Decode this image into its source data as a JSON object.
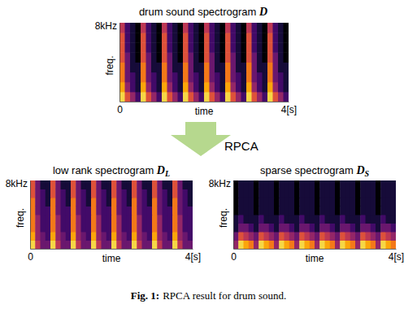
{
  "figure": {
    "arrow_label": "RPCA",
    "caption_label": "Fig. 1:",
    "caption": "RPCA result for drum sound."
  },
  "chart_data": [
    {
      "type": "heatmap",
      "title": "drum sound spectrogram",
      "symbol": "D",
      "xlabel": "time",
      "ylabel": "freq.",
      "xlim": [
        0,
        4
      ],
      "xticks": [
        0,
        {
          "value": 4,
          "label": "4[s]"
        }
      ],
      "ylim": [
        0,
        8
      ],
      "yticks": [
        {
          "value": 8,
          "label": "8kHz"
        }
      ],
      "zlim": [
        0,
        1
      ],
      "cells": [
        [
          0.9,
          0.6,
          0.4,
          0.2,
          0.9,
          0.6,
          0.4,
          0.2,
          0.9,
          0.6,
          0.4,
          0.2,
          0.9,
          0.6,
          0.4,
          0.2,
          0.9,
          0.6,
          0.4,
          0.2,
          0.9,
          0.6,
          0.4,
          0.2,
          0.9,
          0.6,
          0.4,
          0.2,
          0.9,
          0.6,
          0.4,
          0.2
        ],
        [
          0.8,
          0.4,
          0.2,
          0.1,
          0.8,
          0.4,
          0.2,
          0.1,
          0.8,
          0.4,
          0.2,
          0.1,
          0.8,
          0.4,
          0.2,
          0.1,
          0.8,
          0.4,
          0.2,
          0.1,
          0.8,
          0.4,
          0.2,
          0.1,
          0.8,
          0.4,
          0.2,
          0.1,
          0.8,
          0.4,
          0.2,
          0.1
        ],
        [
          0.7,
          0.3,
          0.2,
          0.1,
          0.7,
          0.3,
          0.2,
          0.1,
          0.7,
          0.3,
          0.2,
          0.1,
          0.7,
          0.3,
          0.2,
          0.1,
          0.7,
          0.3,
          0.2,
          0.1,
          0.7,
          0.3,
          0.2,
          0.1,
          0.7,
          0.3,
          0.2,
          0.1,
          0.7,
          0.3,
          0.2,
          0.1
        ],
        [
          0.7,
          0.3,
          0.1,
          0.1,
          0.7,
          0.3,
          0.1,
          0.1,
          0.7,
          0.3,
          0.1,
          0.1,
          0.7,
          0.3,
          0.1,
          0.1,
          0.7,
          0.3,
          0.1,
          0.1,
          0.7,
          0.3,
          0.1,
          0.1,
          0.7,
          0.3,
          0.1,
          0.1,
          0.7,
          0.3,
          0.1,
          0.1
        ],
        [
          0.6,
          0.3,
          0.1,
          0,
          0.6,
          0.3,
          0.1,
          0,
          0.6,
          0.3,
          0.1,
          0,
          0.6,
          0.3,
          0.1,
          0,
          0.6,
          0.3,
          0.1,
          0,
          0.6,
          0.3,
          0.1,
          0,
          0.6,
          0.3,
          0.1,
          0,
          0.6,
          0.3,
          0.1,
          0
        ],
        [
          0.6,
          0.2,
          0.1,
          0,
          0.6,
          0.2,
          0.1,
          0,
          0.6,
          0.2,
          0.1,
          0,
          0.6,
          0.2,
          0.1,
          0,
          0.6,
          0.2,
          0.1,
          0,
          0.6,
          0.2,
          0.1,
          0,
          0.6,
          0.2,
          0.1,
          0,
          0.6,
          0.2,
          0.1,
          0
        ],
        [
          0.6,
          0.2,
          0.1,
          0,
          0.6,
          0.2,
          0.1,
          0,
          0.6,
          0.2,
          0.1,
          0,
          0.6,
          0.2,
          0.1,
          0,
          0.6,
          0.2,
          0.1,
          0,
          0.6,
          0.2,
          0.1,
          0,
          0.6,
          0.2,
          0.1,
          0,
          0.6,
          0.2,
          0.1,
          0
        ],
        [
          0.5,
          0.2,
          0.1,
          0,
          0.5,
          0.2,
          0.1,
          0,
          0.5,
          0.2,
          0.1,
          0,
          0.5,
          0.2,
          0.1,
          0,
          0.5,
          0.2,
          0.1,
          0,
          0.5,
          0.2,
          0.1,
          0,
          0.5,
          0.2,
          0.1,
          0,
          0.5,
          0.2,
          0.1,
          0
        ]
      ]
    },
    {
      "type": "heatmap",
      "title": "low rank spectrogram",
      "symbol": "D",
      "subscript": "L",
      "xlabel": "time",
      "ylabel": "freq.",
      "xlim": [
        0,
        4
      ],
      "xticks": [
        0,
        {
          "value": 4,
          "label": "4[s]"
        }
      ],
      "ylim": [
        0,
        8
      ],
      "yticks": [
        {
          "value": 8,
          "label": "8kHz"
        }
      ],
      "zlim": [
        0,
        1
      ],
      "cells": [
        [
          0.9,
          0.5,
          0.3,
          0.3,
          0.9,
          0.5,
          0.3,
          0.3,
          0.9,
          0.5,
          0.3,
          0.3,
          0.9,
          0.5,
          0.3,
          0.3,
          0.9,
          0.5,
          0.3,
          0.3,
          0.9,
          0.5,
          0.3,
          0.3,
          0.9,
          0.5,
          0.3,
          0.3,
          0.9,
          0.5,
          0.3,
          0.3
        ],
        [
          0.8,
          0.4,
          0.3,
          0.2,
          0.8,
          0.4,
          0.3,
          0.2,
          0.8,
          0.4,
          0.3,
          0.2,
          0.8,
          0.4,
          0.3,
          0.2,
          0.8,
          0.4,
          0.3,
          0.2,
          0.8,
          0.4,
          0.3,
          0.2,
          0.8,
          0.4,
          0.3,
          0.2,
          0.8,
          0.4,
          0.3,
          0.2
        ],
        [
          0.7,
          0.4,
          0.2,
          0.2,
          0.7,
          0.4,
          0.2,
          0.2,
          0.7,
          0.4,
          0.2,
          0.2,
          0.7,
          0.4,
          0.2,
          0.2,
          0.7,
          0.4,
          0.2,
          0.2,
          0.7,
          0.4,
          0.2,
          0.2,
          0.7,
          0.4,
          0.2,
          0.2,
          0.7,
          0.4,
          0.2,
          0.2
        ],
        [
          0.7,
          0.4,
          0.2,
          0.2,
          0.7,
          0.4,
          0.2,
          0.2,
          0.7,
          0.4,
          0.2,
          0.2,
          0.7,
          0.4,
          0.2,
          0.2,
          0.7,
          0.4,
          0.2,
          0.2,
          0.7,
          0.4,
          0.2,
          0.2,
          0.7,
          0.4,
          0.2,
          0.2,
          0.7,
          0.4,
          0.2,
          0.2
        ],
        [
          0.7,
          0.3,
          0.2,
          0.2,
          0.7,
          0.3,
          0.2,
          0.2,
          0.7,
          0.3,
          0.2,
          0.2,
          0.7,
          0.3,
          0.2,
          0.2,
          0.7,
          0.3,
          0.2,
          0.2,
          0.7,
          0.3,
          0.2,
          0.2,
          0.7,
          0.3,
          0.2,
          0.2,
          0.7,
          0.3,
          0.2,
          0.2
        ],
        [
          0.7,
          0.3,
          0.2,
          0.1,
          0.7,
          0.3,
          0.2,
          0.1,
          0.7,
          0.3,
          0.2,
          0.1,
          0.7,
          0.3,
          0.2,
          0.1,
          0.7,
          0.3,
          0.2,
          0.1,
          0.7,
          0.3,
          0.2,
          0.1,
          0.7,
          0.3,
          0.2,
          0.1,
          0.7,
          0.3,
          0.2,
          0.1
        ],
        [
          0.6,
          0.3,
          0.2,
          0.1,
          0.6,
          0.3,
          0.2,
          0.1,
          0.6,
          0.3,
          0.2,
          0.1,
          0.6,
          0.3,
          0.2,
          0.1,
          0.6,
          0.3,
          0.2,
          0.1,
          0.6,
          0.3,
          0.2,
          0.1,
          0.6,
          0.3,
          0.2,
          0.1,
          0.6,
          0.3,
          0.2,
          0.1
        ],
        [
          0.6,
          0.3,
          0.1,
          0.1,
          0.6,
          0.3,
          0.1,
          0.1,
          0.6,
          0.3,
          0.1,
          0.1,
          0.6,
          0.3,
          0.1,
          0.1,
          0.6,
          0.3,
          0.1,
          0.1,
          0.6,
          0.3,
          0.1,
          0.1,
          0.6,
          0.3,
          0.1,
          0.1,
          0.6,
          0.3,
          0.1,
          0.1
        ]
      ]
    },
    {
      "type": "heatmap",
      "title": "sparse spectrogram",
      "symbol": "D",
      "subscript": "S",
      "xlabel": "time",
      "ylabel": "freq.",
      "xlim": [
        0,
        4
      ],
      "xticks": [
        0,
        {
          "value": 4,
          "label": "4[s]"
        }
      ],
      "ylim": [
        0,
        8
      ],
      "yticks": [
        {
          "value": 8,
          "label": "8kHz"
        }
      ],
      "zlim": [
        0,
        1
      ],
      "cells": [
        [
          0.4,
          0.9,
          0.8,
          0.7,
          0.4,
          0.9,
          0.8,
          0.7,
          0.4,
          0.9,
          0.8,
          0.7,
          0.4,
          0.9,
          0.8,
          0.7,
          0.4,
          0.9,
          0.8,
          0.7,
          0.4,
          0.9,
          0.8,
          0.7,
          0.4,
          0.9,
          0.8,
          0.7,
          0.4,
          0.9,
          0.8,
          0.7
        ],
        [
          0.3,
          0.6,
          0.5,
          0.4,
          0.3,
          0.6,
          0.5,
          0.4,
          0.3,
          0.6,
          0.5,
          0.4,
          0.3,
          0.6,
          0.5,
          0.4,
          0.3,
          0.6,
          0.5,
          0.4,
          0.3,
          0.6,
          0.5,
          0.4,
          0.3,
          0.6,
          0.5,
          0.4,
          0.3,
          0.6,
          0.5,
          0.4
        ],
        [
          0.1,
          0.3,
          0.3,
          0.2,
          0.1,
          0.3,
          0.3,
          0.2,
          0.1,
          0.3,
          0.3,
          0.2,
          0.1,
          0.3,
          0.3,
          0.2,
          0.1,
          0.3,
          0.3,
          0.2,
          0.1,
          0.3,
          0.3,
          0.2,
          0.1,
          0.3,
          0.3,
          0.2,
          0.1,
          0.3,
          0.3,
          0.2
        ],
        [
          0.1,
          0.2,
          0.1,
          0.1,
          0.1,
          0.2,
          0.1,
          0.1,
          0.1,
          0.2,
          0.1,
          0.1,
          0.1,
          0.2,
          0.1,
          0.1,
          0.1,
          0.2,
          0.1,
          0.1,
          0.1,
          0.2,
          0.1,
          0.1,
          0.1,
          0.2,
          0.1,
          0.1,
          0.1,
          0.2,
          0.1,
          0.1
        ],
        [
          0,
          0.1,
          0.1,
          0.1,
          0,
          0.1,
          0.1,
          0.1,
          0,
          0.1,
          0.1,
          0.1,
          0,
          0.1,
          0.1,
          0.1,
          0,
          0.1,
          0.1,
          0.1,
          0,
          0.1,
          0.1,
          0.1,
          0,
          0.1,
          0.1,
          0.1,
          0,
          0.1,
          0.1,
          0.1
        ],
        [
          0,
          0.1,
          0.1,
          0.1,
          0,
          0.1,
          0.1,
          0.1,
          0,
          0.1,
          0.1,
          0.1,
          0,
          0.1,
          0.1,
          0.1,
          0,
          0.1,
          0.1,
          0.1,
          0,
          0.1,
          0.1,
          0.1,
          0,
          0.1,
          0.1,
          0.1,
          0,
          0.1,
          0.1,
          0.1
        ],
        [
          0,
          0.1,
          0.1,
          0.1,
          0,
          0.1,
          0.1,
          0.1,
          0,
          0.1,
          0.1,
          0.1,
          0,
          0.1,
          0.1,
          0.1,
          0,
          0.1,
          0.1,
          0.1,
          0,
          0.1,
          0.1,
          0.1,
          0,
          0.1,
          0.1,
          0.1,
          0,
          0.1,
          0.1,
          0.1
        ],
        [
          0,
          0.1,
          0.1,
          0.1,
          0,
          0.1,
          0.1,
          0.1,
          0,
          0.1,
          0.1,
          0.1,
          0,
          0.1,
          0.1,
          0.1,
          0,
          0.1,
          0.1,
          0.1,
          0,
          0.1,
          0.1,
          0.1,
          0,
          0.1,
          0.1,
          0.1,
          0,
          0.1,
          0.1,
          0.1
        ]
      ]
    }
  ]
}
